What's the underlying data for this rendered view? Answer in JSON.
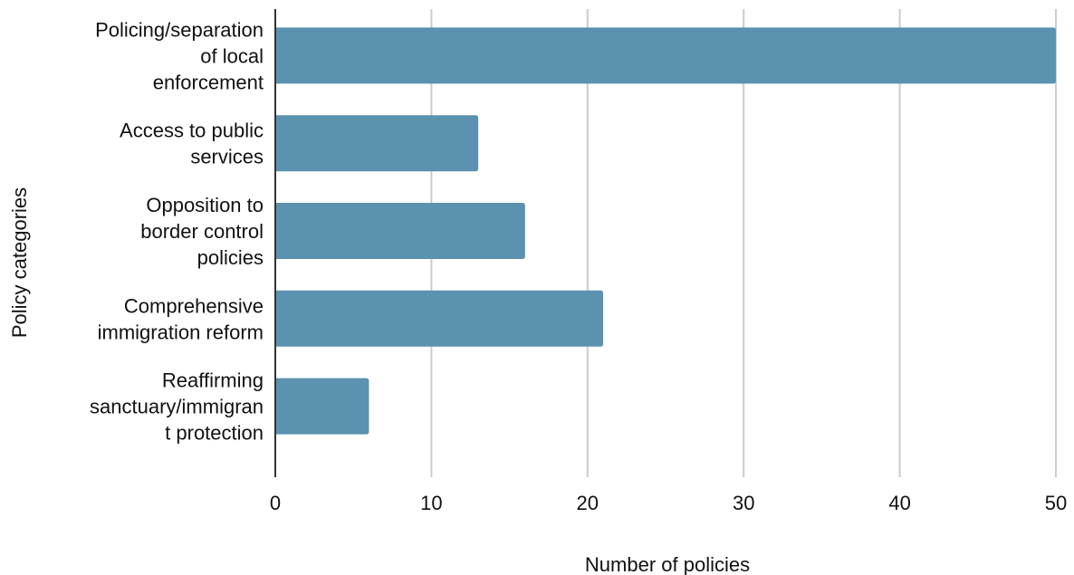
{
  "chart_data": {
    "type": "bar",
    "orientation": "horizontal",
    "title": "",
    "xlabel": "Number of policies",
    "ylabel": "Policy categories",
    "categories": [
      [
        "Policing/separation",
        "of local",
        "enforcement"
      ],
      [
        "Access to public",
        "services"
      ],
      [
        "Opposition to",
        "border control",
        "policies"
      ],
      [
        "Comprehensive",
        "immigration reform"
      ],
      [
        "Reaffirming",
        "sanctuary/immigran",
        "t protection"
      ]
    ],
    "values": [
      50,
      13,
      16,
      21,
      6
    ],
    "xlim": [
      0,
      50
    ],
    "xticks": [
      0,
      10,
      20,
      30,
      40,
      50
    ],
    "grid": "vertical",
    "legend": "none",
    "bar_color": "#5a92af"
  }
}
